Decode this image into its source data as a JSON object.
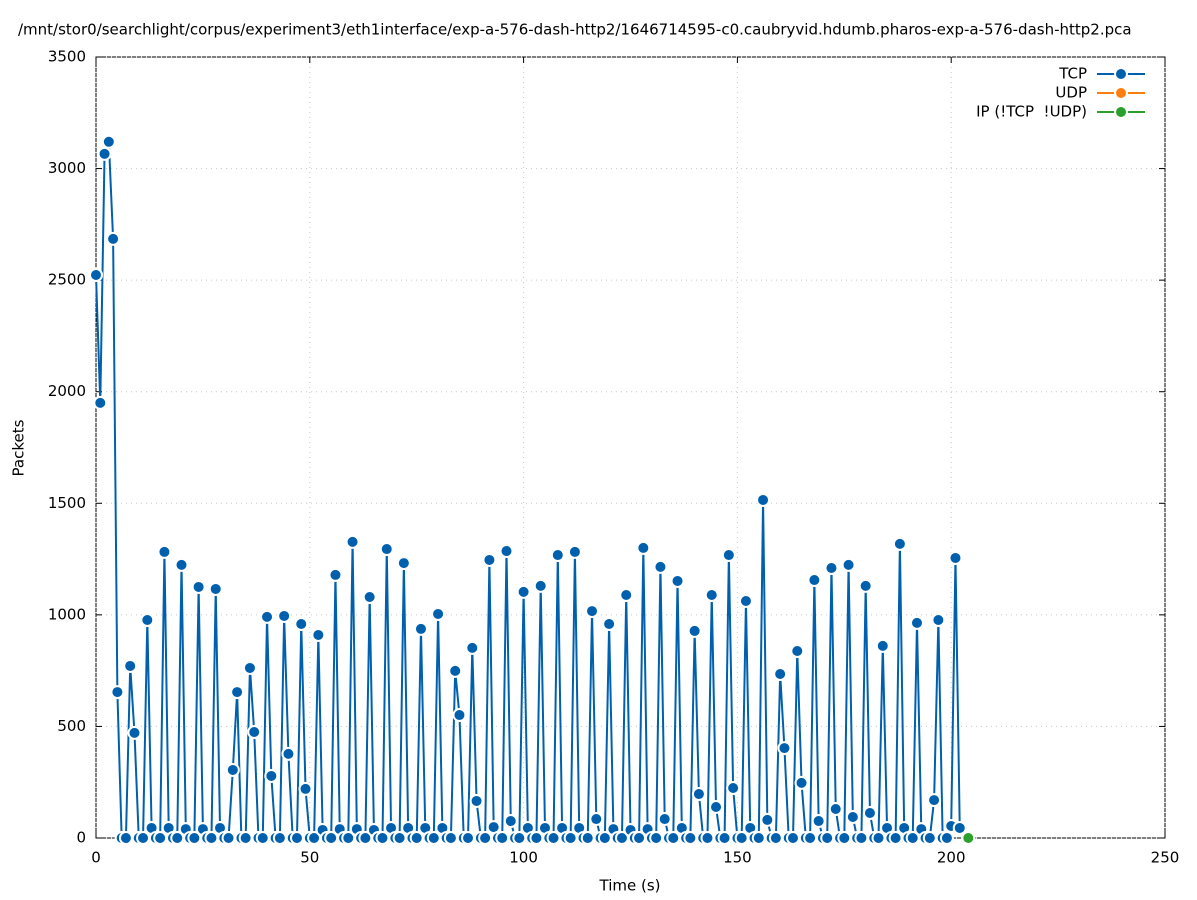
{
  "chart_data": {
    "type": "line",
    "title": "/mnt/stor0/searchlight/corpus/experiment3/eth1interface/exp-a-576-dash-http2/1646714595-c0.caubryvid.hdumb.pharos-exp-a-576-dash-http2.pca",
    "xlabel": "Time (s)",
    "ylabel": "Packets",
    "xlim": [
      0,
      250
    ],
    "xticks": [
      0,
      50,
      100,
      150,
      200,
      250
    ],
    "ylim": [
      0,
      3500
    ],
    "yticks": [
      0,
      500,
      1000,
      1500,
      2000,
      2500,
      3000,
      3500
    ],
    "grid": true,
    "legend": "upper right",
    "series": [
      {
        "name": "TCP",
        "color": "#0060ad",
        "x": [
          0,
          1,
          2,
          3,
          4,
          5,
          6,
          7,
          8,
          9,
          10,
          11,
          12,
          13,
          14,
          15,
          16,
          17,
          18,
          19,
          20,
          21,
          22,
          23,
          24,
          25,
          26,
          27,
          28,
          29,
          30,
          31,
          32,
          33,
          34,
          35,
          36,
          37,
          38,
          39,
          40,
          41,
          42,
          43,
          44,
          45,
          46,
          47,
          48,
          49,
          50,
          51,
          52,
          53,
          54,
          55,
          56,
          57,
          58,
          59,
          60,
          61,
          62,
          63,
          64,
          65,
          66,
          67,
          68,
          69,
          70,
          71,
          72,
          73,
          74,
          75,
          76,
          77,
          78,
          79,
          80,
          81,
          82,
          83,
          84,
          85,
          86,
          87,
          88,
          89,
          90,
          91,
          92,
          93,
          94,
          95,
          96,
          97,
          98,
          99,
          100,
          101,
          102,
          103,
          104,
          105,
          106,
          107,
          108,
          109,
          110,
          111,
          112,
          113,
          114,
          115,
          116,
          117,
          118,
          119,
          120,
          121,
          122,
          123,
          124,
          125,
          126,
          127,
          128,
          129,
          130,
          131,
          132,
          133,
          134,
          135,
          136,
          137,
          138,
          139,
          140,
          141,
          142,
          143,
          144,
          145,
          146,
          147,
          148,
          149,
          150,
          151,
          152,
          153,
          154,
          155,
          156,
          157,
          158,
          159,
          160,
          161,
          162,
          163,
          164,
          165,
          166,
          167,
          168,
          169,
          170,
          171,
          172,
          173,
          174,
          175,
          176,
          177,
          178,
          179,
          180,
          181,
          182,
          183,
          184,
          185,
          186,
          187,
          188,
          189,
          190,
          191,
          192,
          193,
          194,
          195,
          196,
          197,
          198,
          199,
          200,
          201,
          202
        ],
        "values": [
          2523,
          1950,
          3066,
          3120,
          2685,
          654,
          0,
          0,
          771,
          471,
          0,
          0,
          977,
          45,
          0,
          0,
          1282,
          45,
          0,
          0,
          1224,
          40,
          0,
          0,
          1125,
          40,
          0,
          0,
          1116,
          45,
          0,
          0,
          305,
          654,
          0,
          0,
          762,
          475,
          0,
          0,
          991,
          278,
          0,
          0,
          995,
          377,
          0,
          0,
          959,
          220,
          0,
          0,
          910,
          36,
          0,
          0,
          1179,
          40,
          0,
          0,
          1327,
          40,
          0,
          0,
          1080,
          36,
          0,
          0,
          1295,
          45,
          0,
          0,
          1232,
          45,
          0,
          0,
          937,
          45,
          0,
          0,
          1004,
          45,
          0,
          0,
          749,
          551,
          0,
          0,
          852,
          166,
          0,
          0,
          1246,
          49,
          0,
          0,
          1286,
          76,
          0,
          0,
          1103,
          45,
          0,
          0,
          1130,
          45,
          0,
          0,
          1268,
          45,
          0,
          0,
          1282,
          45,
          0,
          0,
          1017,
          85,
          0,
          0,
          959,
          40,
          0,
          0,
          1089,
          36,
          0,
          0,
          1300,
          40,
          0,
          0,
          1215,
          85,
          0,
          0,
          1152,
          45,
          0,
          0,
          928,
          197,
          0,
          0,
          1089,
          139,
          0,
          0,
          1268,
          224,
          0,
          0,
          1062,
          45,
          0,
          0,
          1515,
          81,
          0,
          0,
          735,
          403,
          0,
          0,
          838,
          247,
          0,
          0,
          1156,
          76,
          0,
          0,
          1210,
          130,
          0,
          0,
          1224,
          94,
          0,
          0,
          1130,
          112,
          0,
          0,
          861,
          45,
          0,
          0,
          1318,
          45,
          0,
          0,
          964,
          40,
          0,
          0,
          170,
          977,
          0,
          0,
          54,
          1255,
          45
        ]
      },
      {
        "name": "UDP",
        "color": "#ff7f0e",
        "x": [],
        "values": []
      },
      {
        "name": "IP (!TCP  !UDP)",
        "color": "#2ca02c",
        "x": [
          204
        ],
        "values": [
          0
        ]
      }
    ]
  }
}
